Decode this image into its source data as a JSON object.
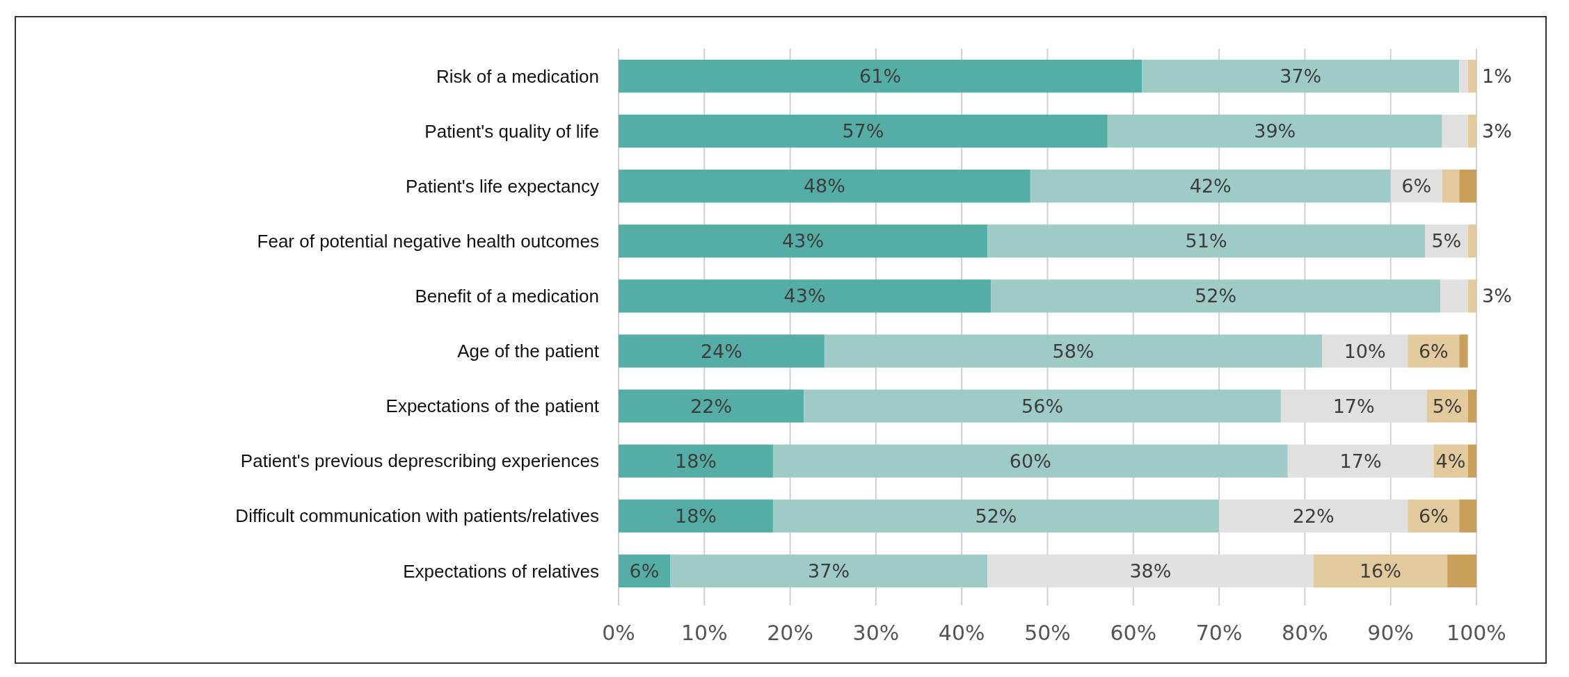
{
  "chart_data": {
    "type": "bar",
    "orientation": "horizontal",
    "stacked": true,
    "categories": [
      "Risk of a medication",
      "Patient's quality of life",
      "Patient's life expectancy",
      "Fear of potential negative health outcomes",
      "Benefit of a medication",
      "Age of the patient",
      "Expectations of the patient",
      "Patient's previous deprescribing experiences",
      "Difficult communication with patients/relatives",
      "Expectations of relatives"
    ],
    "series": [
      {
        "color": "#55aea6",
        "values": [
          61,
          57,
          48,
          43,
          43.4,
          24,
          21.6,
          18,
          18,
          6
        ],
        "value_labels": [
          "61%",
          "57%",
          "48%",
          "43%",
          "43%",
          "24%",
          "22%",
          "18%",
          "18%",
          "6%"
        ]
      },
      {
        "color": "#9fcbc6",
        "values": [
          37,
          39,
          42,
          51,
          52.4,
          58,
          55.6,
          60,
          52,
          37
        ],
        "value_labels": [
          "37%",
          "39%",
          "42%",
          "51%",
          "52%",
          "58%",
          "56%",
          "60%",
          "52%",
          "37%"
        ]
      },
      {
        "color": "#e0e0e0",
        "values": [
          1,
          3,
          6,
          5,
          3.2,
          10,
          17,
          17,
          22,
          38
        ],
        "value_labels": [
          "1%",
          "3%",
          "6%",
          "5%",
          "3%",
          "10%",
          "17%",
          "17%",
          "22%",
          "38%"
        ]
      },
      {
        "color": "#e3ca9c",
        "values": [
          1,
          1,
          2,
          1,
          1,
          6,
          4.8,
          4,
          6,
          15.6
        ],
        "value_labels": [
          null,
          null,
          null,
          null,
          null,
          "6%",
          "5%",
          "4%",
          "6%",
          "16%"
        ]
      },
      {
        "color": "#c9a05a",
        "values": [
          0,
          0,
          2,
          0,
          0,
          1,
          1,
          1,
          2,
          3.4
        ],
        "value_labels": [
          null,
          null,
          null,
          null,
          null,
          null,
          null,
          null,
          null,
          null
        ]
      }
    ],
    "xlim": [
      0,
      100
    ],
    "xticks": [
      {
        "value": 0,
        "label": "0%"
      },
      {
        "value": 10,
        "label": "10%"
      },
      {
        "value": 20,
        "label": "20%"
      },
      {
        "value": 30,
        "label": "30%"
      },
      {
        "value": 40,
        "label": "40%"
      },
      {
        "value": 50,
        "label": "50%"
      },
      {
        "value": 60,
        "label": "60%"
      },
      {
        "value": 70,
        "label": "70%"
      },
      {
        "value": 80,
        "label": "80%"
      },
      {
        "value": 90,
        "label": "90%"
      },
      {
        "value": 100,
        "label": "100%"
      }
    ],
    "grid": "x"
  }
}
